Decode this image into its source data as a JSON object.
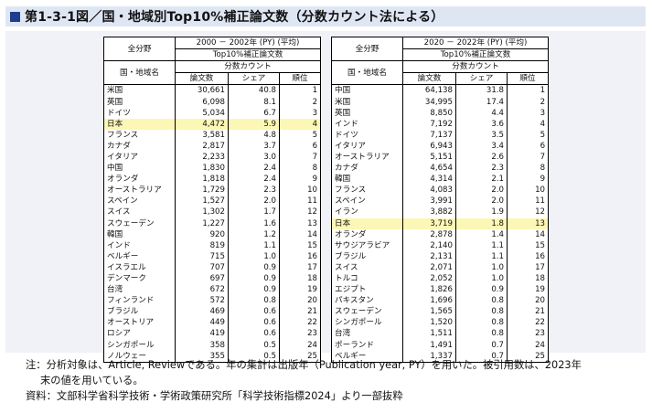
{
  "title": "第1-3-1図／国・地域別Top10%補正論文数（分数カウント法による）",
  "left_table": {
    "field": "全分野",
    "period": "2000 － 2002年 (PY) (平均)",
    "metric": "Top10%補正論文数",
    "method": "分数カウント",
    "row_label_header": "国・地域名",
    "col_headers": [
      "論文数",
      "シェア",
      "順位"
    ],
    "highlight_index": 3,
    "rows": [
      [
        "米国",
        "30,661",
        "40.8",
        "1"
      ],
      [
        "英国",
        "6,098",
        "8.1",
        "2"
      ],
      [
        "ドイツ",
        "5,034",
        "6.7",
        "3"
      ],
      [
        "日本",
        "4,472",
        "5.9",
        "4"
      ],
      [
        "フランス",
        "3,581",
        "4.8",
        "5"
      ],
      [
        "カナダ",
        "2,817",
        "3.7",
        "6"
      ],
      [
        "イタリア",
        "2,233",
        "3.0",
        "7"
      ],
      [
        "中国",
        "1,830",
        "2.4",
        "8"
      ],
      [
        "オランダ",
        "1,818",
        "2.4",
        "9"
      ],
      [
        "オーストラリア",
        "1,729",
        "2.3",
        "10"
      ],
      [
        "スペイン",
        "1,527",
        "2.0",
        "11"
      ],
      [
        "スイス",
        "1,302",
        "1.7",
        "12"
      ],
      [
        "スウェーデン",
        "1,227",
        "1.6",
        "13"
      ],
      [
        "韓国",
        "920",
        "1.2",
        "14"
      ],
      [
        "インド",
        "819",
        "1.1",
        "15"
      ],
      [
        "ベルギー",
        "715",
        "1.0",
        "16"
      ],
      [
        "イスラエル",
        "707",
        "0.9",
        "17"
      ],
      [
        "デンマーク",
        "697",
        "0.9",
        "18"
      ],
      [
        "台湾",
        "672",
        "0.9",
        "19"
      ],
      [
        "フィンランド",
        "572",
        "0.8",
        "20"
      ],
      [
        "ブラジル",
        "469",
        "0.6",
        "21"
      ],
      [
        "オーストリア",
        "449",
        "0.6",
        "22"
      ],
      [
        "ロシア",
        "419",
        "0.6",
        "23"
      ],
      [
        "シンガポール",
        "358",
        "0.5",
        "24"
      ],
      [
        "ノルウェー",
        "355",
        "0.5",
        "25"
      ]
    ]
  },
  "right_table": {
    "field": "全分野",
    "period": "2020 － 2022年 (PY) (平均)",
    "metric": "Top10%補正論文数",
    "method": "分数カウント",
    "row_label_header": "国・地域名",
    "col_headers": [
      "論文数",
      "シェア",
      "順位"
    ],
    "highlight_index": 12,
    "rows": [
      [
        "中国",
        "64,138",
        "31.8",
        "1"
      ],
      [
        "米国",
        "34,995",
        "17.4",
        "2"
      ],
      [
        "英国",
        "8,850",
        "4.4",
        "3"
      ],
      [
        "インド",
        "7,192",
        "3.6",
        "4"
      ],
      [
        "ドイツ",
        "7,137",
        "3.5",
        "5"
      ],
      [
        "イタリア",
        "6,943",
        "3.4",
        "6"
      ],
      [
        "オーストラリア",
        "5,151",
        "2.6",
        "7"
      ],
      [
        "カナダ",
        "4,654",
        "2.3",
        "8"
      ],
      [
        "韓国",
        "4,314",
        "2.1",
        "9"
      ],
      [
        "フランス",
        "4,083",
        "2.0",
        "10"
      ],
      [
        "スペイン",
        "3,991",
        "2.0",
        "11"
      ],
      [
        "イラン",
        "3,882",
        "1.9",
        "12"
      ],
      [
        "日本",
        "3,719",
        "1.8",
        "13"
      ],
      [
        "オランダ",
        "2,878",
        "1.4",
        "14"
      ],
      [
        "サウジアラビア",
        "2,140",
        "1.1",
        "15"
      ],
      [
        "ブラジル",
        "2,131",
        "1.1",
        "16"
      ],
      [
        "スイス",
        "2,071",
        "1.0",
        "17"
      ],
      [
        "トルコ",
        "2,052",
        "1.0",
        "18"
      ],
      [
        "エジプト",
        "1,826",
        "0.9",
        "19"
      ],
      [
        "パキスタン",
        "1,696",
        "0.8",
        "20"
      ],
      [
        "スウェーデン",
        "1,565",
        "0.8",
        "21"
      ],
      [
        "シンガポール",
        "1,520",
        "0.8",
        "22"
      ],
      [
        "台湾",
        "1,511",
        "0.8",
        "23"
      ],
      [
        "ポーランド",
        "1,491",
        "0.7",
        "24"
      ],
      [
        "ベルギー",
        "1,337",
        "0.7",
        "25"
      ]
    ]
  },
  "notes": {
    "note_line1": "注：分析対象は、Article, Reviewである。年の集計は出版年（Publication year, PY）を用いた。被引用数は、2023年",
    "note_line2": "末の値を用いている。",
    "source": "資料：文部科学省科学技術・学術政策研究所「科学技術指標2024」より一部抜粋"
  }
}
